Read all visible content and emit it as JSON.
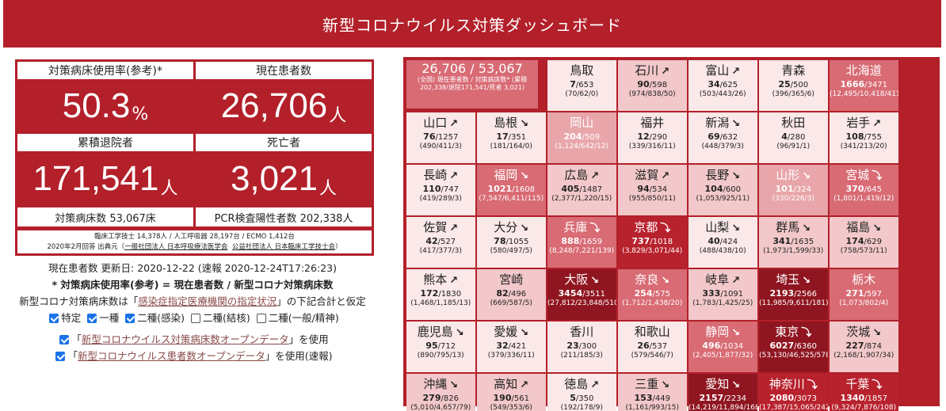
{
  "header": {
    "title": "新型コロナウイルス対策ダッシュボード"
  },
  "stats": {
    "bed_rate_label": "対策病床使用率(参考)*",
    "bed_rate_value": "50.3",
    "bed_rate_unit": "%",
    "patients_label": "現在患者数",
    "patients_value": "26,706",
    "patients_unit": "人",
    "discharged_label": "累積退院者",
    "discharged_value": "171,541",
    "discharged_unit": "人",
    "deaths_label": "死亡者",
    "deaths_value": "3,021",
    "deaths_unit": "人",
    "beds_total": "対策病床数 53,067床",
    "pcr_total": "PCR検査陽性者数 202,338人",
    "note_line1": "臨床工学技士 14,378人 / 人工呼吸器 28,197台 / ECMO 1,412台",
    "note_prefix": "2020年2月回答 出典元（",
    "note_link1": "一般社団法人 日本呼吸療法医学会",
    "note_link2": "公益社団法人 日本臨床工学技士会",
    "note_suffix": "）"
  },
  "info": {
    "updated": "現在患者数 更新日: 2020-12-22 (速報 2020-12-24T17:26:23)",
    "formula": "* 対策病床使用率(参考) = 現在患者数 / 新型コロナ対策病床数",
    "beds_prefix": "新型コロナ対策病床数は「",
    "beds_link": "感染症指定医療機関の指定状況",
    "beds_suffix": "」の下記合計と仮定",
    "checkboxes": [
      {
        "label": "特定",
        "checked": true
      },
      {
        "label": "一種",
        "checked": true
      },
      {
        "label": "二種(感染)",
        "checked": true
      },
      {
        "label": "二種(結核)",
        "checked": false
      },
      {
        "label": "二種(一般/精神)",
        "checked": false
      }
    ],
    "use1_prefix": "「",
    "use1_link": "新型コロナウイルス対策病床数オープンデータ",
    "use1_suffix": "」を使用",
    "use2_prefix": "「",
    "use2_link": "新型コロナウイルス患者数オープンデータ",
    "use2_suffix": "」を使用(速報)"
  },
  "summary": {
    "big": "26,706 / 53,067",
    "small": "(全国) 現在患者数 / 対策病床数* (累積202,338/退院171,541/死者 3,021)"
  },
  "colors": {
    "l0": "#fbe8e8",
    "l1": "#f2c8ca",
    "l2": "#e8a6ab",
    "l3": "#d86b74",
    "l4": "#b8222d",
    "l5": "#8f1620"
  },
  "arrow_icons": {
    "up": "↗",
    "flat": "↘",
    "down": "⤵",
    "rise": "⬏"
  },
  "prefectures": [
    {
      "row": 0,
      "col": 2,
      "name": "鳥取",
      "arrow": "",
      "cur": "7",
      "beds": "653",
      "detail": "(70/62/0)",
      "level": 0
    },
    {
      "row": 0,
      "col": 3,
      "name": "石川",
      "arrow": "up",
      "cur": "90",
      "beds": "598",
      "detail": "(974/838/50)",
      "level": 1
    },
    {
      "row": 0,
      "col": 4,
      "name": "富山",
      "arrow": "up",
      "cur": "34",
      "beds": "625",
      "detail": "(503/443/26)",
      "level": 0
    },
    {
      "row": 0,
      "col": 5,
      "name": "青森",
      "arrow": "",
      "cur": "25",
      "beds": "500",
      "detail": "(396/365/6)",
      "level": 0
    },
    {
      "row": 0,
      "col": 6,
      "name": "北海道",
      "arrow": "",
      "cur": "1666",
      "beds": "3471",
      "detail": "(12,495/10,418/411)",
      "level": 3
    },
    {
      "row": 1,
      "col": 0,
      "name": "山口",
      "arrow": "up",
      "cur": "76",
      "beds": "1257",
      "detail": "(490/411/3)",
      "level": 0
    },
    {
      "row": 1,
      "col": 1,
      "name": "島根",
      "arrow": "flat",
      "cur": "17",
      "beds": "351",
      "detail": "(181/164/0)",
      "level": 0
    },
    {
      "row": 1,
      "col": 2,
      "name": "岡山",
      "arrow": "",
      "cur": "204",
      "beds": "509",
      "detail": "(1,124/642/12)",
      "level": 2
    },
    {
      "row": 1,
      "col": 3,
      "name": "福井",
      "arrow": "",
      "cur": "12",
      "beds": "290",
      "detail": "(339/316/11)",
      "level": 0
    },
    {
      "row": 1,
      "col": 4,
      "name": "新潟",
      "arrow": "flat",
      "cur": "69",
      "beds": "632",
      "detail": "(448/379/3)",
      "level": 0
    },
    {
      "row": 1,
      "col": 5,
      "name": "秋田",
      "arrow": "",
      "cur": "4",
      "beds": "280",
      "detail": "(96/91/1)",
      "level": 0
    },
    {
      "row": 1,
      "col": 6,
      "name": "岩手",
      "arrow": "up",
      "cur": "108",
      "beds": "755",
      "detail": "(341/213/20)",
      "level": 0
    },
    {
      "row": 2,
      "col": 0,
      "name": "長崎",
      "arrow": "up",
      "cur": "110",
      "beds": "747",
      "detail": "(419/289/3)",
      "level": 0
    },
    {
      "row": 2,
      "col": 1,
      "name": "福岡",
      "arrow": "flat",
      "cur": "1021",
      "beds": "1608",
      "detail": "(7,547/6,411/115)",
      "level": 3
    },
    {
      "row": 2,
      "col": 2,
      "name": "広島",
      "arrow": "up",
      "cur": "405",
      "beds": "1487",
      "detail": "(2,377/1,220/15)",
      "level": 1
    },
    {
      "row": 2,
      "col": 3,
      "name": "滋賀",
      "arrow": "up",
      "cur": "94",
      "beds": "534",
      "detail": "(955/850/11)",
      "level": 1
    },
    {
      "row": 2,
      "col": 4,
      "name": "長野",
      "arrow": "flat",
      "cur": "104",
      "beds": "600",
      "detail": "(1,053/925/11)",
      "level": 1
    },
    {
      "row": 2,
      "col": 5,
      "name": "山形",
      "arrow": "flat",
      "cur": "101",
      "beds": "324",
      "detail": "(330/226/3)",
      "level": 2
    },
    {
      "row": 2,
      "col": 6,
      "name": "宮城",
      "arrow": "down",
      "cur": "370",
      "beds": "645",
      "detail": "(1,801/1,419/12)",
      "level": 3
    },
    {
      "row": 3,
      "col": 0,
      "name": "佐賀",
      "arrow": "up",
      "cur": "42",
      "beds": "527",
      "detail": "(417/377/3)",
      "level": 0
    },
    {
      "row": 3,
      "col": 1,
      "name": "大分",
      "arrow": "flat",
      "cur": "78",
      "beds": "1055",
      "detail": "(580/497/5)",
      "level": 0
    },
    {
      "row": 3,
      "col": 2,
      "name": "兵庫",
      "arrow": "down",
      "cur": "888",
      "beds": "1659",
      "detail": "(8,248/7,221/139)",
      "level": 3
    },
    {
      "row": 3,
      "col": 3,
      "name": "京都",
      "arrow": "down",
      "cur": "737",
      "beds": "1018",
      "detail": "(3,829/3,071/44)",
      "level": 4
    },
    {
      "row": 3,
      "col": 4,
      "name": "山梨",
      "arrow": "flat",
      "cur": "40",
      "beds": "424",
      "detail": "(488/438/10)",
      "level": 0
    },
    {
      "row": 3,
      "col": 5,
      "name": "群馬",
      "arrow": "flat",
      "cur": "341",
      "beds": "1635",
      "detail": "(1,973/1,599/33)",
      "level": 1
    },
    {
      "row": 3,
      "col": 6,
      "name": "福島",
      "arrow": "flat",
      "cur": "174",
      "beds": "629",
      "detail": "(758/573/11)",
      "level": 1
    },
    {
      "row": 4,
      "col": 0,
      "name": "熊本",
      "arrow": "up",
      "cur": "172",
      "beds": "1830",
      "detail": "(1,468/1,185/13)",
      "level": 0
    },
    {
      "row": 4,
      "col": 1,
      "name": "宮崎",
      "arrow": "",
      "cur": "82",
      "beds": "496",
      "detail": "(669/587/5)",
      "level": 1
    },
    {
      "row": 4,
      "col": 2,
      "name": "大阪",
      "arrow": "flat",
      "cur": "3454",
      "beds": "3511",
      "detail": "(27,812/23,848/510)",
      "level": 5
    },
    {
      "row": 4,
      "col": 3,
      "name": "奈良",
      "arrow": "flat",
      "cur": "254",
      "beds": "575",
      "detail": "(1,712/1,438/20)",
      "level": 3
    },
    {
      "row": 4,
      "col": 4,
      "name": "岐阜",
      "arrow": "up",
      "cur": "333",
      "beds": "1091",
      "detail": "(1,783/1,425/25)",
      "level": 1
    },
    {
      "row": 4,
      "col": 5,
      "name": "埼玉",
      "arrow": "flat",
      "cur": "2193",
      "beds": "2566",
      "detail": "(11,985/9,611/181)",
      "level": 5
    },
    {
      "row": 4,
      "col": 6,
      "name": "栃木",
      "arrow": "",
      "cur": "271",
      "beds": "597",
      "detail": "(1,073/802/4)",
      "level": 3
    },
    {
      "row": 5,
      "col": 0,
      "name": "鹿児島",
      "arrow": "flat",
      "cur": "95",
      "beds": "712",
      "detail": "(890/795/13)",
      "level": 0
    },
    {
      "row": 5,
      "col": 1,
      "name": "愛媛",
      "arrow": "flat",
      "cur": "32",
      "beds": "421",
      "detail": "(379/336/11)",
      "level": 0
    },
    {
      "row": 5,
      "col": 2,
      "name": "香川",
      "arrow": "",
      "cur": "23",
      "beds": "300",
      "detail": "(211/185/3)",
      "level": 0
    },
    {
      "row": 5,
      "col": 3,
      "name": "和歌山",
      "arrow": "",
      "cur": "26",
      "beds": "537",
      "detail": "(579/546/7)",
      "level": 0
    },
    {
      "row": 5,
      "col": 4,
      "name": "静岡",
      "arrow": "flat",
      "cur": "496",
      "beds": "1034",
      "detail": "(2,405/1,877/32)",
      "level": 3
    },
    {
      "row": 5,
      "col": 5,
      "name": "東京",
      "arrow": "down",
      "cur": "6027",
      "beds": "6360",
      "detail": "(53,130/46,525/578)",
      "level": 5
    },
    {
      "row": 5,
      "col": 6,
      "name": "茨城",
      "arrow": "flat",
      "cur": "227",
      "beds": "874",
      "detail": "(2,168/1,907/34)",
      "level": 1
    },
    {
      "row": 6,
      "col": 0,
      "name": "沖縄",
      "arrow": "flat",
      "cur": "279",
      "beds": "826",
      "detail": "(5,010/4,657/79)",
      "level": 1
    },
    {
      "row": 6,
      "col": 1,
      "name": "高知",
      "arrow": "up",
      "cur": "190",
      "beds": "561",
      "detail": "(549/353/6)",
      "level": 1
    },
    {
      "row": 6,
      "col": 2,
      "name": "徳島",
      "arrow": "up",
      "cur": "5",
      "beds": "350",
      "detail": "(192/178/9)",
      "level": 0
    },
    {
      "row": 6,
      "col": 3,
      "name": "三重",
      "arrow": "flat",
      "cur": "153",
      "beds": "449",
      "detail": "(1,161/993/15)",
      "level": 1
    },
    {
      "row": 6,
      "col": 4,
      "name": "愛知",
      "arrow": "flat",
      "cur": "2157",
      "beds": "2234",
      "detail": "(14,219/11,894/168)",
      "level": 5
    },
    {
      "row": 6,
      "col": 5,
      "name": "神奈川",
      "arrow": "down",
      "cur": "2080",
      "beds": "3073",
      "detail": "(17,387/15,065/242)",
      "level": 4
    },
    {
      "row": 6,
      "col": 6,
      "name": "千葉",
      "arrow": "down",
      "cur": "1340",
      "beds": "1857",
      "detail": "(9,324/7,876/108)",
      "level": 4
    }
  ]
}
